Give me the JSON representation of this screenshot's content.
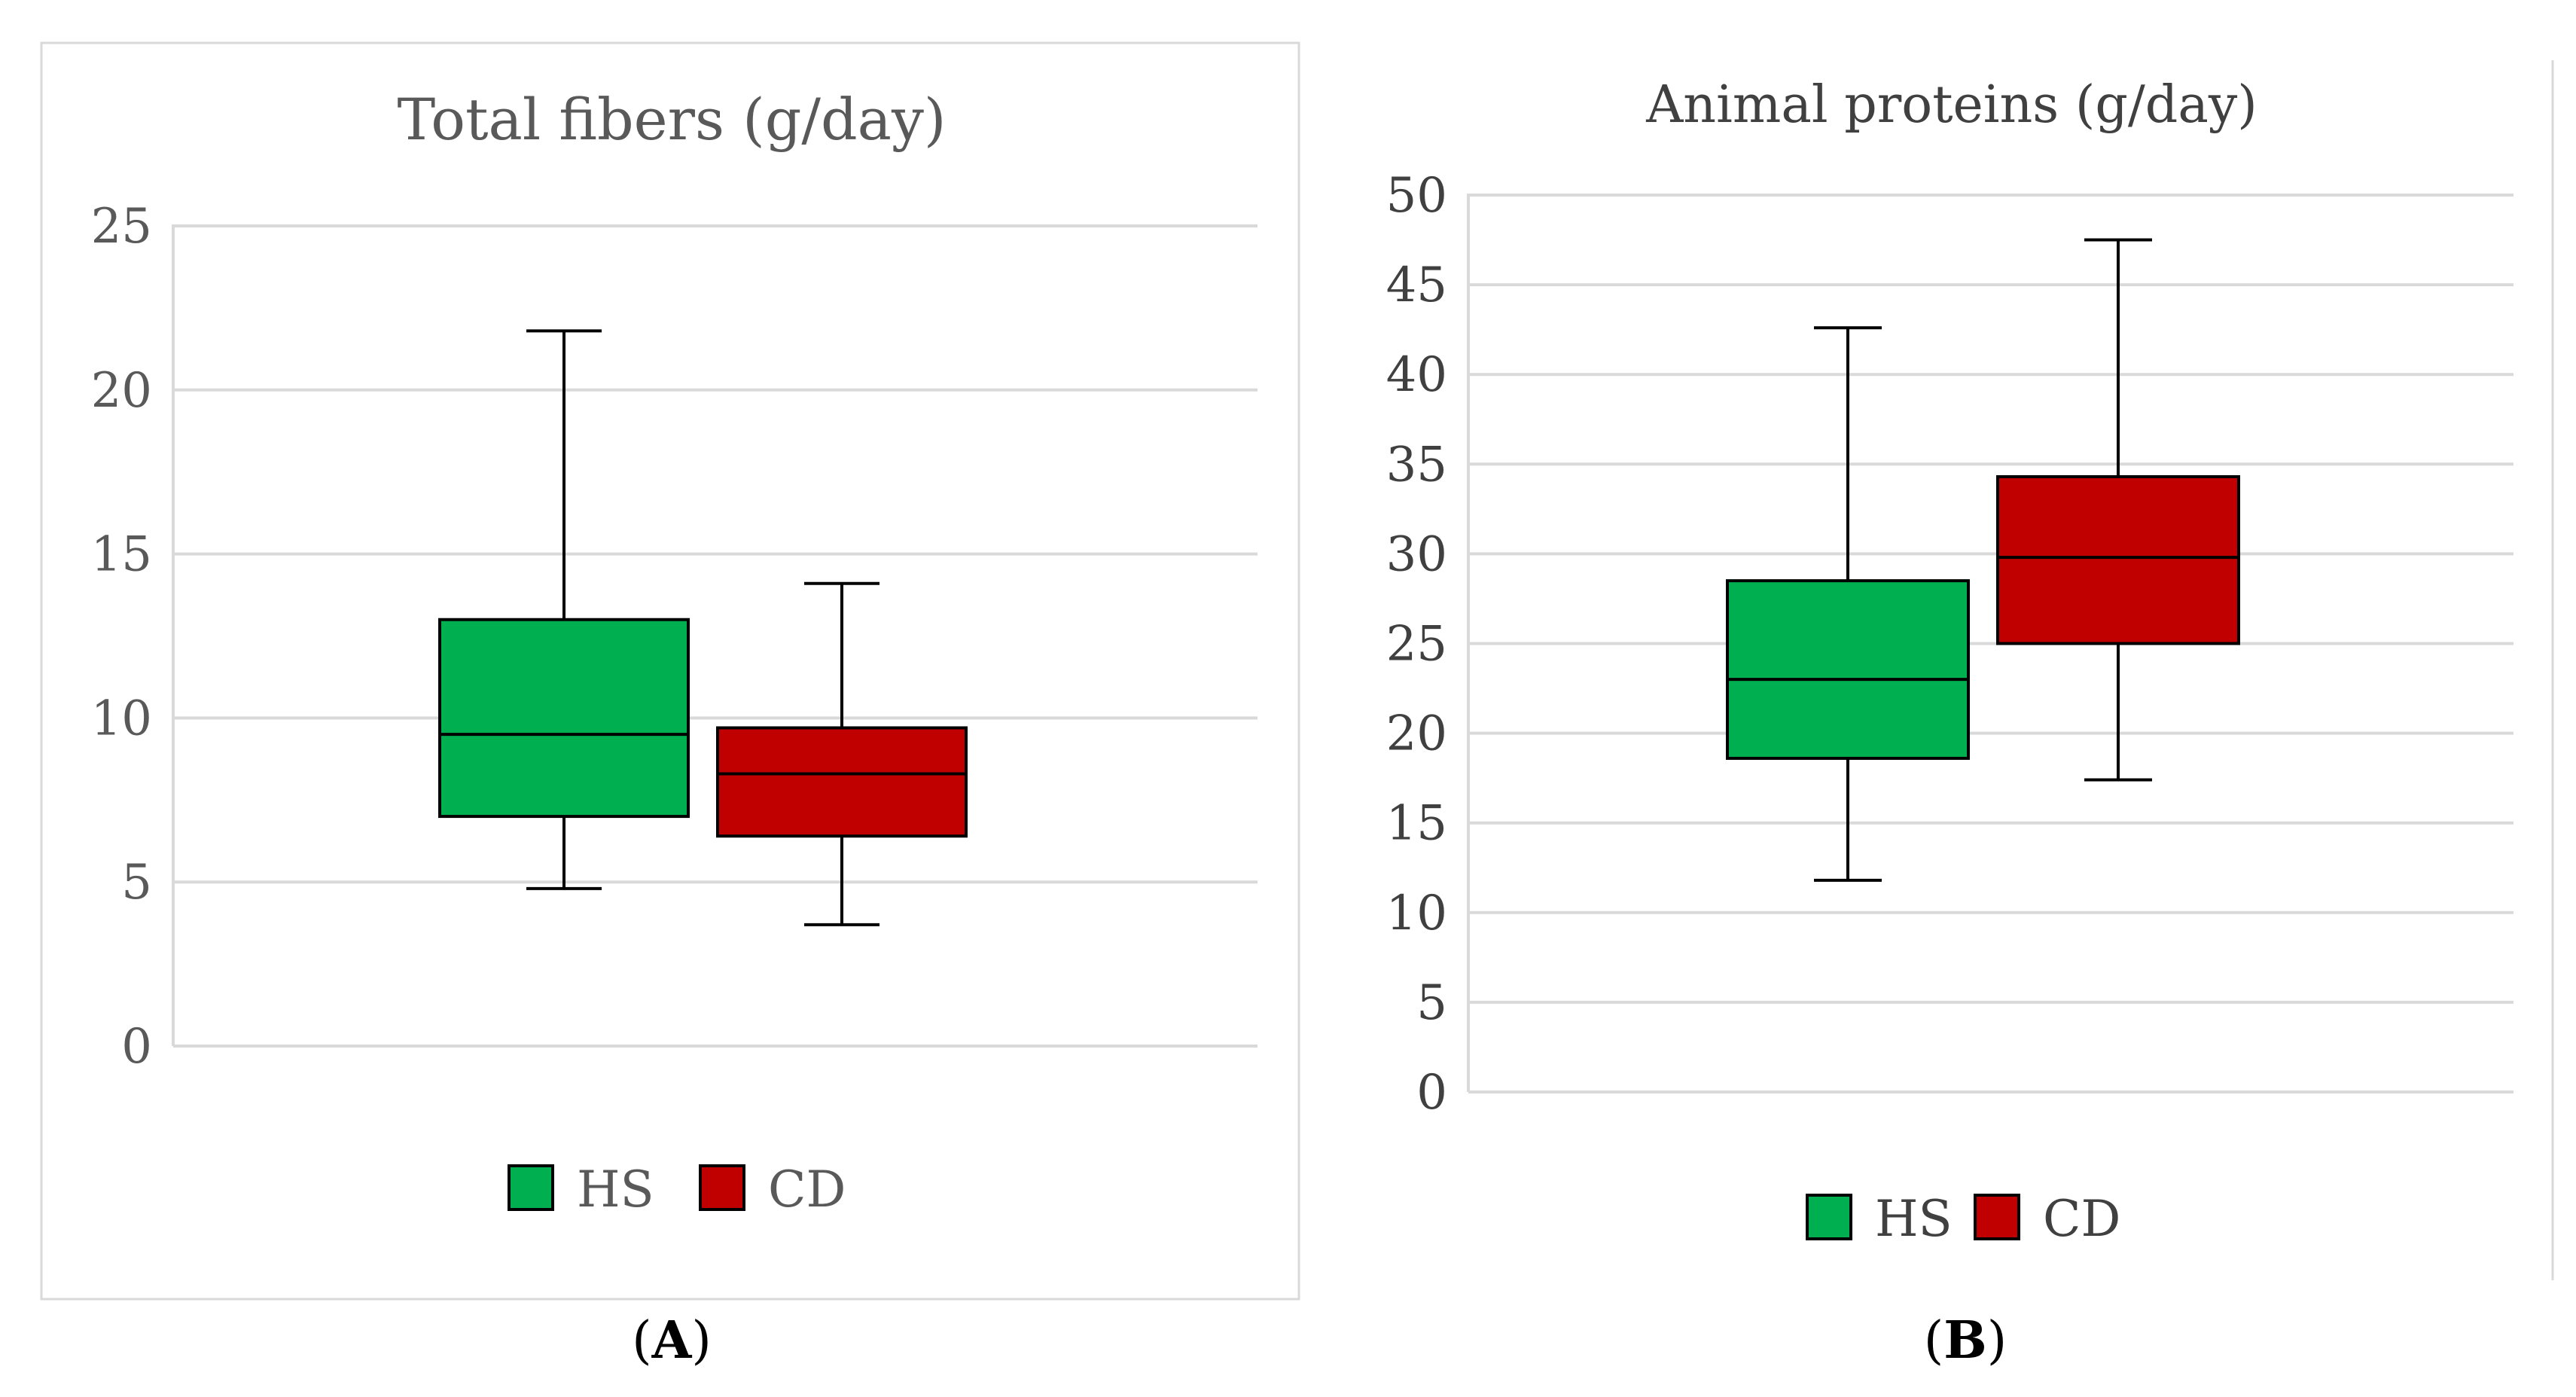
{
  "chart_data": [
    {
      "type": "boxplot",
      "panel_label": "A",
      "title": "Total fibers (g/day)",
      "ylim": [
        0,
        25
      ],
      "yticks": [
        "0",
        "5",
        "10",
        "15",
        "20",
        "25"
      ],
      "grid": true,
      "legend_position": "bottom",
      "series": [
        {
          "name": "HS",
          "color": "#00b050",
          "min": 4.8,
          "q1": 7.0,
          "median": 9.5,
          "q3": 13.0,
          "max": 21.8
        },
        {
          "name": "CD",
          "color": "#c00000",
          "min": 3.7,
          "q1": 6.4,
          "median": 8.3,
          "q3": 9.7,
          "max": 14.1
        }
      ]
    },
    {
      "type": "boxplot",
      "panel_label": "B",
      "title": "Animal proteins (g/day)",
      "ylim": [
        0,
        50
      ],
      "yticks": [
        "0",
        "5",
        "10",
        "15",
        "20",
        "25",
        "30",
        "35",
        "40",
        "45",
        "50"
      ],
      "grid": true,
      "legend_position": "bottom",
      "series": [
        {
          "name": "HS",
          "color": "#00b050",
          "min": 11.8,
          "q1": 18.6,
          "median": 23.0,
          "q3": 28.5,
          "max": 42.6
        },
        {
          "name": "CD",
          "color": "#c00000",
          "min": 17.4,
          "q1": 25.0,
          "median": 29.8,
          "q3": 34.3,
          "max": 47.5
        }
      ]
    }
  ]
}
